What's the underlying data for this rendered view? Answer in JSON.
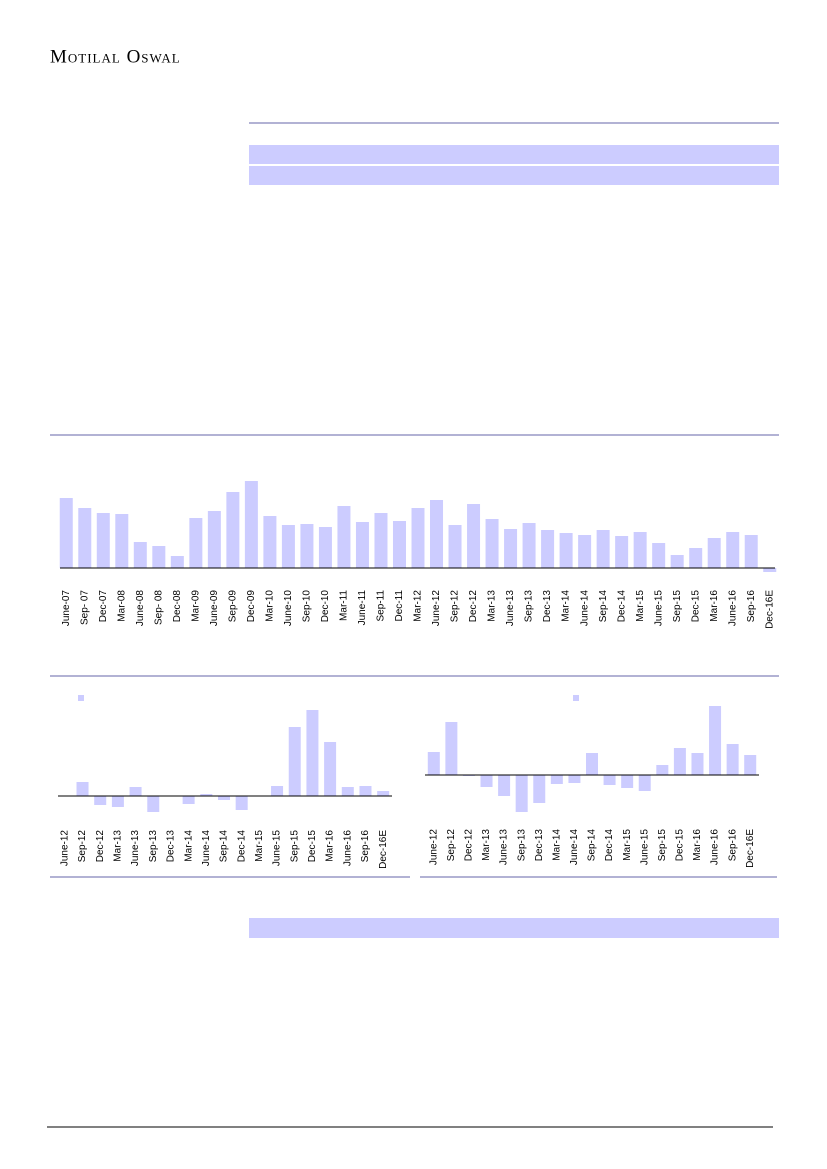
{
  "header": {
    "logo": "Motilal Oswal"
  },
  "chart_data": [
    {
      "type": "bar",
      "color": "#ccccff",
      "categories": [
        "June-07",
        "Sep- 07",
        "Dec-07",
        "Mar-08",
        "June-08",
        "Sep- 08",
        "Dec-08",
        "Mar-09",
        "June-09",
        "Sep-09",
        "Dec-09",
        "Mar-10",
        "June-10",
        "Sep-10",
        "Dec-10",
        "Mar-11",
        "June-11",
        "Sep-11",
        "Dec-11",
        "Mar-12",
        "June-12",
        "Sep-12",
        "Dec-12",
        "Mar-13",
        "June-13",
        "Sep-13",
        "Dec-13",
        "Mar-14",
        "June-14",
        "Sep-14",
        "Dec-14",
        "Mar-15",
        "June-15",
        "Sep-15",
        "Dec-15",
        "Mar-16",
        "June-16",
        "Sep-16",
        "Dec-16E"
      ],
      "values": [
        70,
        60,
        55,
        54,
        26,
        22,
        12,
        50,
        57,
        76,
        87,
        52,
        43,
        44,
        41,
        62,
        46,
        55,
        47,
        60,
        68,
        43,
        64,
        49,
        39,
        45,
        38,
        35,
        33,
        38,
        32,
        36,
        25,
        13,
        20,
        30,
        36,
        33,
        -4
      ],
      "ylim": [
        -10,
        100
      ]
    },
    {
      "type": "bar",
      "color": "#ccccff",
      "categories": [
        "June-12",
        "Sep-12",
        "Dec-12",
        "Mar-13",
        "June-13",
        "Sep-13",
        "Dec-13",
        "Mar-14",
        "June-14",
        "Sep-14",
        "Dec-14",
        "Mar-15",
        "June-15",
        "Sep-15",
        "Dec-15",
        "Mar-16",
        "June-16",
        "Sep-16",
        "Dec-16E"
      ],
      "values": [
        0,
        14,
        -9,
        -11,
        9,
        -16,
        0,
        -8,
        2,
        -4,
        -14,
        0,
        10,
        69,
        86,
        54,
        9,
        10,
        5
      ],
      "ylim": [
        -20,
        100
      ]
    },
    {
      "type": "bar",
      "color": "#ccccff",
      "categories": [
        "June-12",
        "Sep-12",
        "Dec-12",
        "Mar-13",
        "June-13",
        "Sep-13",
        "Dec-13",
        "Mar-14",
        "June-14",
        "Sep-14",
        "Dec-14",
        "Mar-15",
        "June-15",
        "Sep-15",
        "Dec-15",
        "Mar-16",
        "June-16",
        "Sep-16",
        "Dec-16E"
      ],
      "values": [
        23,
        53,
        -1,
        -12,
        -21,
        -37,
        -28,
        -9,
        -8,
        22,
        -10,
        -13,
        -16,
        10,
        27,
        22,
        69,
        31,
        20
      ],
      "ylim": [
        -40,
        80
      ]
    }
  ]
}
